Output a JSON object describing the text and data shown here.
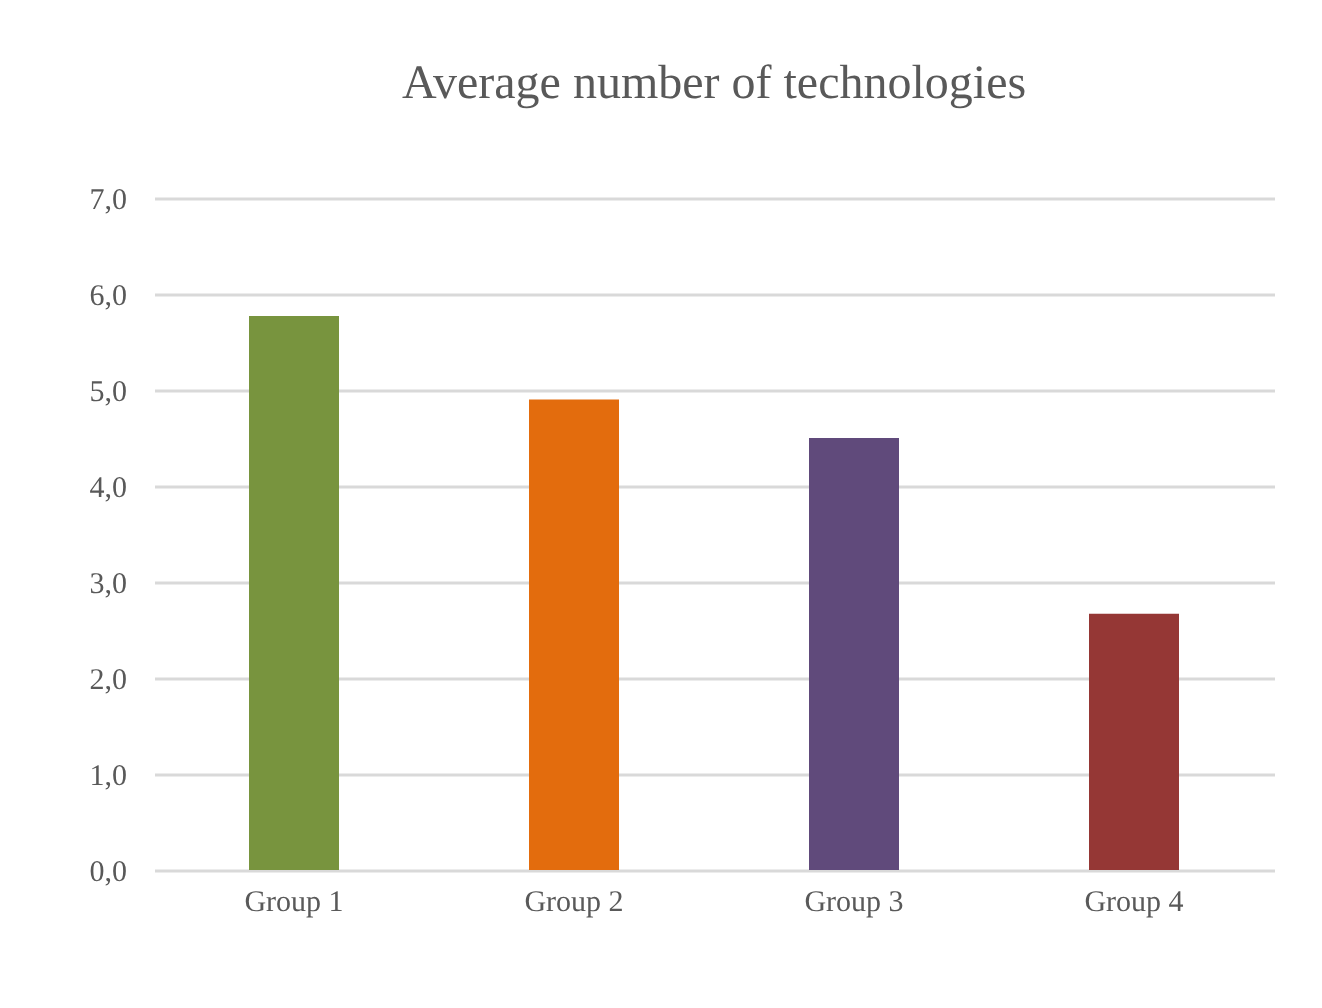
{
  "chart_data": {
    "type": "bar",
    "title": "Average number of technologies",
    "categories": [
      "Group 1",
      "Group 2",
      "Group 3",
      "Group 4"
    ],
    "values": [
      5.77,
      4.9,
      4.5,
      2.67
    ],
    "colors": [
      "#78943e",
      "#e36c0d",
      "#604a7b",
      "#953735"
    ],
    "ylim": [
      0,
      7
    ],
    "yticks": [
      {
        "value": 0,
        "label": "0,0"
      },
      {
        "value": 1,
        "label": "1,0"
      },
      {
        "value": 2,
        "label": "2,0"
      },
      {
        "value": 3,
        "label": "3,0"
      },
      {
        "value": 4,
        "label": "4,0"
      },
      {
        "value": 5,
        "label": "5,0"
      },
      {
        "value": 6,
        "label": "6,0"
      },
      {
        "value": 7,
        "label": "7,0"
      }
    ],
    "grid": "y"
  }
}
